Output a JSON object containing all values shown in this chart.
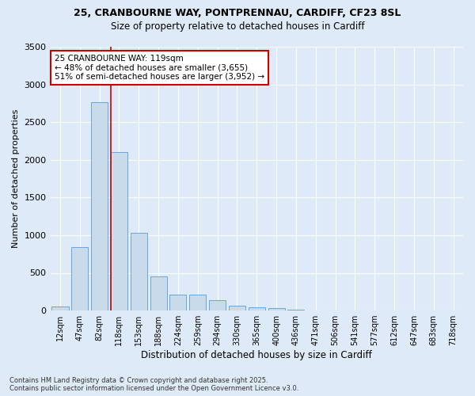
{
  "title_line1": "25, CRANBOURNE WAY, PONTPRENNAU, CARDIFF, CF23 8SL",
  "title_line2": "Size of property relative to detached houses in Cardiff",
  "xlabel": "Distribution of detached houses by size in Cardiff",
  "ylabel": "Number of detached properties",
  "bar_labels": [
    "12sqm",
    "47sqm",
    "82sqm",
    "118sqm",
    "153sqm",
    "188sqm",
    "224sqm",
    "259sqm",
    "294sqm",
    "330sqm",
    "365sqm",
    "400sqm",
    "436sqm",
    "471sqm",
    "506sqm",
    "541sqm",
    "577sqm",
    "612sqm",
    "647sqm",
    "683sqm",
    "718sqm"
  ],
  "bar_values": [
    50,
    840,
    2760,
    2100,
    1030,
    450,
    215,
    215,
    135,
    60,
    45,
    30,
    15,
    5,
    5,
    2,
    2,
    2,
    2,
    2,
    2
  ],
  "bar_color": "#c9daea",
  "bar_edge_color": "#5b9bd5",
  "red_line_index": 3,
  "annotation_text_line1": "25 CRANBOURNE WAY: 119sqm",
  "annotation_text_line2": "← 48% of detached houses are smaller (3,655)",
  "annotation_text_line3": "51% of semi-detached houses are larger (3,952) →",
  "annotation_box_color": "#ffffff",
  "annotation_box_edge_color": "#cc0000",
  "red_line_color": "#cc0000",
  "ylim": [
    0,
    3500
  ],
  "yticks": [
    0,
    500,
    1000,
    1500,
    2000,
    2500,
    3000,
    3500
  ],
  "footer_line1": "Contains HM Land Registry data © Crown copyright and database right 2025.",
  "footer_line2": "Contains public sector information licensed under the Open Government Licence v3.0.",
  "background_color": "#deeaf7",
  "axes_background_color": "#deeaf7"
}
